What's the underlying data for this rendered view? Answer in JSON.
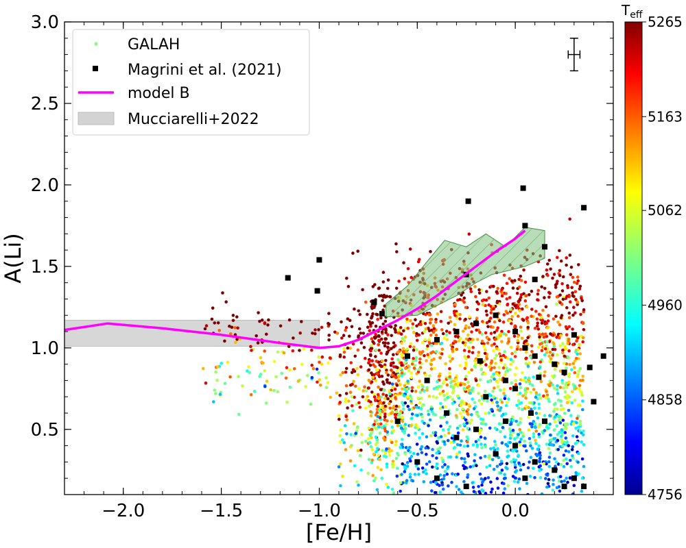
{
  "chart_data": {
    "type": "scatter",
    "title": "",
    "xlabel": "[Fe/H]",
    "ylabel": "A(Li)",
    "xlim": [
      -2.3,
      0.5
    ],
    "ylim": [
      0.1,
      3.0
    ],
    "x_ticks": [
      -2.0,
      -1.5,
      -1.0,
      -0.5,
      0.0
    ],
    "x_tick_labels": [
      "−2.0",
      "−1.5",
      "−1.0",
      "−0.5",
      "0.0"
    ],
    "y_ticks": [
      0.5,
      1.0,
      1.5,
      2.0,
      2.5,
      3.0
    ],
    "y_tick_labels": [
      "0.5",
      "1.0",
      "1.5",
      "2.0",
      "2.5",
      "3.0"
    ],
    "legend": {
      "location": "upper-left",
      "entries": [
        {
          "key": "galah",
          "label": "GALAH"
        },
        {
          "key": "magrini",
          "label": "Magrini et al. (2021)"
        },
        {
          "key": "model",
          "label": "model B"
        },
        {
          "key": "mucciarelli",
          "label": "Mucciarelli+2022"
        }
      ]
    },
    "colorbar": {
      "label": "T",
      "label_sub": "eff",
      "min": 4756,
      "max": 5265,
      "tick_values": [
        4756,
        4858,
        4960,
        5062,
        5163,
        5265
      ],
      "tick_labels": [
        "4756",
        "4858",
        "4960",
        "5062",
        "5163",
        "5265"
      ],
      "colormap": "jet"
    },
    "error_bar": {
      "x": 0.3,
      "y": 2.8,
      "xerr": 0.03,
      "yerr": 0.1
    },
    "model_B": {
      "x": [
        -2.3,
        -2.08,
        -1.8,
        -1.5,
        -1.2,
        -1.0,
        -0.9,
        -0.8,
        -0.7,
        -0.6,
        -0.5,
        -0.4,
        -0.3,
        -0.2,
        -0.1,
        0.0,
        0.05
      ],
      "y": [
        1.11,
        1.15,
        1.12,
        1.08,
        1.03,
        1.0,
        1.01,
        1.05,
        1.11,
        1.17,
        1.24,
        1.32,
        1.41,
        1.5,
        1.59,
        1.67,
        1.72
      ]
    },
    "mucciarelli_band": {
      "x_range": [
        -2.3,
        -1.0
      ],
      "y_range": [
        1.01,
        1.17
      ]
    },
    "green_band": {
      "upper": [
        [
          -0.66,
          1.27
        ],
        [
          -0.55,
          1.38
        ],
        [
          -0.45,
          1.53
        ],
        [
          -0.36,
          1.66
        ],
        [
          -0.25,
          1.62
        ],
        [
          -0.15,
          1.7
        ],
        [
          -0.05,
          1.62
        ],
        [
          0.05,
          1.74
        ],
        [
          0.15,
          1.72
        ]
      ],
      "lower": [
        [
          0.15,
          1.55
        ],
        [
          0.05,
          1.5
        ],
        [
          -0.05,
          1.47
        ],
        [
          -0.12,
          1.45
        ],
        [
          -0.2,
          1.4
        ],
        [
          -0.3,
          1.32
        ],
        [
          -0.4,
          1.26
        ],
        [
          -0.5,
          1.2
        ],
        [
          -0.66,
          1.19
        ]
      ]
    },
    "magrini_points": [
      [
        -1.16,
        1.43
      ],
      [
        -1.0,
        1.54
      ],
      [
        -1.01,
        1.35
      ],
      [
        -0.72,
        1.28
      ],
      [
        -0.68,
        1.21
      ],
      [
        -0.24,
        1.9
      ],
      [
        0.04,
        1.98
      ],
      [
        0.35,
        1.86
      ],
      [
        0.05,
        1.75
      ],
      [
        0.15,
        1.62
      ],
      [
        -0.25,
        1.45
      ],
      [
        0.1,
        1.42
      ],
      [
        -0.4,
        1.05
      ],
      [
        -0.55,
        0.95
      ],
      [
        -0.3,
        1.1
      ],
      [
        -0.2,
        1.15
      ],
      [
        -0.1,
        1.2
      ],
      [
        0.0,
        1.1
      ],
      [
        0.05,
        1.0
      ],
      [
        0.1,
        0.95
      ],
      [
        0.2,
        0.9
      ],
      [
        0.25,
        0.85
      ],
      [
        0.3,
        1.08
      ],
      [
        0.38,
        0.88
      ],
      [
        0.45,
        0.95
      ],
      [
        -0.15,
        0.7
      ],
      [
        -0.05,
        0.8
      ],
      [
        0.0,
        0.75
      ],
      [
        0.08,
        0.6
      ],
      [
        0.15,
        0.55
      ],
      [
        -0.35,
        0.6
      ],
      [
        -0.3,
        0.45
      ],
      [
        -0.2,
        0.5
      ],
      [
        -0.1,
        0.35
      ],
      [
        0.0,
        0.4
      ],
      [
        0.1,
        0.3
      ],
      [
        0.2,
        0.25
      ],
      [
        0.3,
        0.2
      ],
      [
        0.35,
        0.15
      ],
      [
        0.4,
        0.67
      ],
      [
        -0.45,
        0.8
      ],
      [
        -0.6,
        0.55
      ],
      [
        -0.5,
        0.3
      ],
      [
        -0.4,
        0.2
      ],
      [
        -0.25,
        0.15
      ],
      [
        0.05,
        0.2
      ],
      [
        0.25,
        0.15
      ],
      [
        -0.05,
        0.55
      ],
      [
        0.12,
        0.82
      ],
      [
        -0.18,
        0.92
      ]
    ]
  }
}
